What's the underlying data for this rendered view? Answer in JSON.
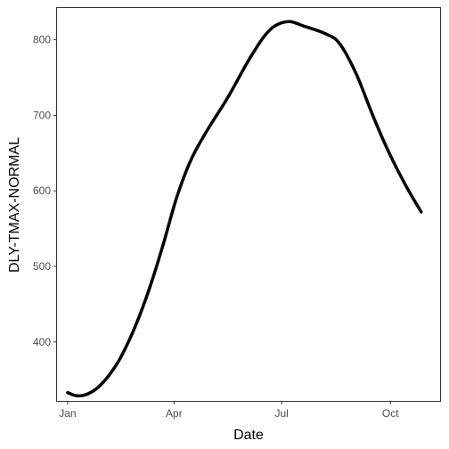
{
  "chart_data": {
    "type": "line",
    "xlabel": "Date",
    "ylabel": "DLY-TMAX-NORMAL",
    "x_ticks": [
      {
        "label": "Jan",
        "date": "2010-01-01"
      },
      {
        "label": "Apr",
        "date": "2010-04-01"
      },
      {
        "label": "Jul",
        "date": "2010-07-01"
      },
      {
        "label": "Oct",
        "date": "2010-10-01"
      }
    ],
    "y_ticks": [
      400,
      500,
      600,
      700,
      800
    ],
    "xlim": [
      "2009-12-23",
      "2010-11-12"
    ],
    "ylim": [
      322,
      842
    ],
    "grid": false,
    "series": [
      {
        "color": "#000000",
        "points": [
          {
            "x": "2010-01-01",
            "y": 333
          },
          {
            "x": "2010-01-08",
            "y": 329
          },
          {
            "x": "2010-01-16",
            "y": 330
          },
          {
            "x": "2010-01-26",
            "y": 339
          },
          {
            "x": "2010-02-05",
            "y": 356
          },
          {
            "x": "2010-02-15",
            "y": 380
          },
          {
            "x": "2010-02-27",
            "y": 420
          },
          {
            "x": "2010-03-11",
            "y": 470
          },
          {
            "x": "2010-03-23",
            "y": 530
          },
          {
            "x": "2010-04-03",
            "y": 590
          },
          {
            "x": "2010-04-15",
            "y": 640
          },
          {
            "x": "2010-04-29",
            "y": 680
          },
          {
            "x": "2010-05-17",
            "y": 725
          },
          {
            "x": "2010-06-05",
            "y": 778
          },
          {
            "x": "2010-06-21",
            "y": 813
          },
          {
            "x": "2010-07-06",
            "y": 824
          },
          {
            "x": "2010-07-20",
            "y": 818
          },
          {
            "x": "2010-08-07",
            "y": 808
          },
          {
            "x": "2010-08-19",
            "y": 795
          },
          {
            "x": "2010-09-02",
            "y": 755
          },
          {
            "x": "2010-09-16",
            "y": 700
          },
          {
            "x": "2010-09-30",
            "y": 650
          },
          {
            "x": "2010-10-14",
            "y": 607
          },
          {
            "x": "2010-10-27",
            "y": 572
          }
        ]
      }
    ]
  }
}
